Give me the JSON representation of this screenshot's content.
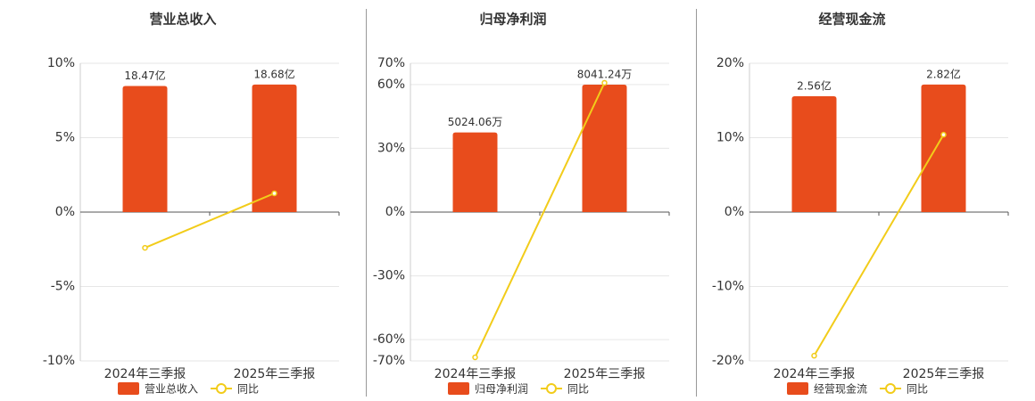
{
  "chart_data": [
    {
      "type": "combo",
      "title": "营业总收入",
      "categories": [
        "2024年三季报",
        "2025年三季报"
      ],
      "series": [
        {
          "name": "营业总收入",
          "type": "bar",
          "axis": "y2",
          "color": "#e84c1c",
          "values": [
            18.47,
            18.68
          ],
          "value_labels": [
            "18.47亿",
            "18.68亿"
          ]
        },
        {
          "name": "同比",
          "type": "line",
          "color": "#f2cc1a",
          "values": [
            -2.4,
            1.26
          ]
        }
      ],
      "ylim": [
        -10,
        10
      ],
      "yticks": [
        {
          "value": 10,
          "label": "10%"
        },
        {
          "value": 5,
          "label": "5%"
        },
        {
          "value": 0,
          "label": "0%"
        },
        {
          "value": -5,
          "label": "-5%"
        },
        {
          "value": -10,
          "label": "-10%"
        }
      ],
      "y2lim": [
        -21.8,
        21.8
      ],
      "grid": true
    },
    {
      "type": "combo",
      "title": "归母净利润",
      "categories": [
        "2024年三季报",
        "2025年三季报"
      ],
      "series": [
        {
          "name": "归母净利润",
          "type": "bar",
          "axis": "y2",
          "color": "#e84c1c",
          "values": [
            5024.06,
            8041.24
          ],
          "value_labels": [
            "5024.06万",
            "8041.24万"
          ]
        },
        {
          "name": "同比",
          "type": "line",
          "color": "#f2cc1a",
          "values": [
            -68.3,
            60.8
          ]
        }
      ],
      "ylim": [
        -70,
        70
      ],
      "yticks": [
        {
          "value": 70,
          "label": "70%"
        },
        {
          "value": 60,
          "label": "60%"
        },
        {
          "value": 30,
          "label": "30%"
        },
        {
          "value": 0,
          "label": "0%"
        },
        {
          "value": -30,
          "label": "-30%"
        },
        {
          "value": -60,
          "label": "-60%"
        },
        {
          "value": -70,
          "label": "-70%"
        }
      ],
      "y2lim": [
        -9390,
        9390
      ],
      "grid": true
    },
    {
      "type": "combo",
      "title": "经营现金流",
      "categories": [
        "2024年三季报",
        "2025年三季报"
      ],
      "series": [
        {
          "name": "经营现金流",
          "type": "bar",
          "axis": "y2",
          "color": "#e84c1c",
          "values": [
            2.56,
            2.82
          ],
          "value_labels": [
            "2.56亿",
            "2.82亿"
          ]
        },
        {
          "name": "同比",
          "type": "line",
          "color": "#f2cc1a",
          "values": [
            -19.3,
            10.4
          ]
        }
      ],
      "ylim": [
        -20,
        20
      ],
      "yticks": [
        {
          "value": 20,
          "label": "20%"
        },
        {
          "value": 10,
          "label": "10%"
        },
        {
          "value": 0,
          "label": "0%"
        },
        {
          "value": -10,
          "label": "-10%"
        },
        {
          "value": -20,
          "label": "-20%"
        }
      ],
      "y2lim": [
        -3.29,
        3.29
      ],
      "grid": true
    }
  ]
}
